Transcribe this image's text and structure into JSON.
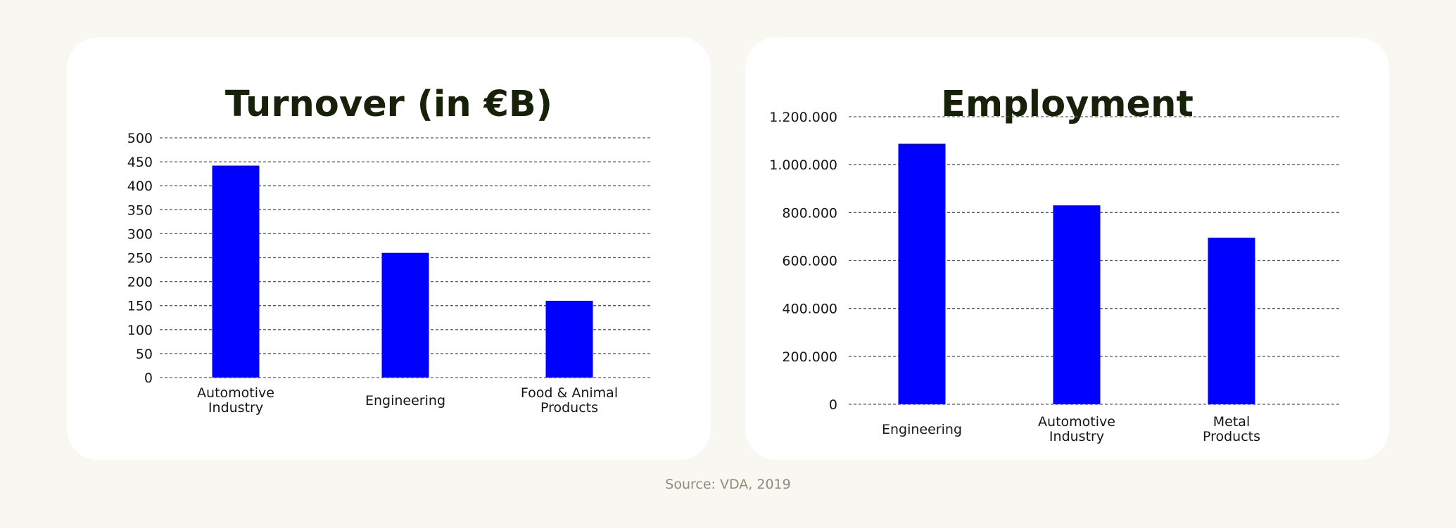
{
  "chart_data": [
    {
      "type": "bar",
      "title": "Turnover (in €B)",
      "categories": [
        "Automotive Industry",
        "Engineering",
        "Food & Animal Products"
      ],
      "category_lines": [
        [
          "Automotive",
          "Industry"
        ],
        [
          "Engineering"
        ],
        [
          "Food & Animal",
          "Products"
        ]
      ],
      "values": [
        442,
        260,
        160
      ],
      "yticks": [
        "0",
        "50",
        "100",
        "150",
        "200",
        "250",
        "300",
        "350",
        "400",
        "450",
        "500"
      ],
      "ylim": [
        0,
        500
      ],
      "grid": true,
      "bar_color": "#0000ff"
    },
    {
      "type": "bar",
      "title": "Employment",
      "categories": [
        "Engineering",
        "Automotive Industry",
        "Metal Products"
      ],
      "category_lines": [
        [
          "Engineering"
        ],
        [
          "Automotive",
          "Industry"
        ],
        [
          "Metal",
          "Products"
        ]
      ],
      "values": [
        1087000,
        830000,
        695000
      ],
      "yticks": [
        "0",
        "200.000",
        "400.000",
        "600.000",
        "800.000",
        "1.000.000",
        "1.200.000"
      ],
      "ylim": [
        0,
        1200000
      ],
      "grid": true,
      "bar_color": "#0000ff"
    }
  ],
  "source": "Source: VDA, 2019"
}
